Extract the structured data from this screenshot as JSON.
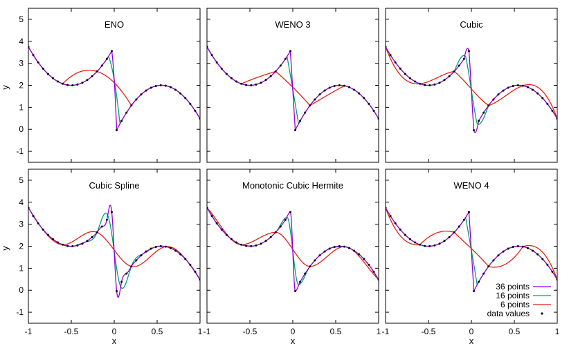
{
  "figure": {
    "axis_xlabel": "x",
    "axis_ylabel": "y",
    "legend_position": "bottom-right of last panel",
    "legend": [
      {
        "label": "36 points",
        "color": "#9400d3"
      },
      {
        "label": "16 points",
        "color": "#009e73"
      },
      {
        "label": "6 points",
        "color": "#e51e10"
      },
      {
        "label": "data values",
        "color": "#000000"
      }
    ]
  },
  "chart_data": [
    {
      "type": "line",
      "title": "ENO",
      "method": "eno",
      "xlim": [
        -1,
        1
      ],
      "ylim": [
        -1.5,
        5.5
      ],
      "xticks": [
        -1,
        -0.5,
        0,
        0.5,
        1
      ],
      "yticks": [
        -1,
        0,
        1,
        2,
        3,
        4,
        5
      ],
      "xticklabels": [],
      "yticklabels": [
        "-1",
        "0",
        "1",
        "2",
        "3",
        "4",
        "5"
      ],
      "xlabel": "",
      "ylabel": "y",
      "series": [
        {
          "name": "36 points",
          "n": 36
        },
        {
          "name": "16 points",
          "n": 16
        },
        {
          "name": "6 points",
          "n": 6
        }
      ],
      "data_values_from": 36
    },
    {
      "type": "line",
      "title": "WENO 3",
      "method": "weno3",
      "xlim": [
        -1,
        1
      ],
      "ylim": [
        -1.5,
        5.5
      ],
      "xticks": [
        -1,
        -0.5,
        0,
        0.5,
        1
      ],
      "yticks": [
        -1,
        0,
        1,
        2,
        3,
        4,
        5
      ],
      "xticklabels": [],
      "yticklabels": [],
      "xlabel": "",
      "ylabel": "",
      "series": [
        {
          "name": "36 points",
          "n": 36
        },
        {
          "name": "16 points",
          "n": 16
        },
        {
          "name": "6 points",
          "n": 6
        }
      ],
      "data_values_from": 36
    },
    {
      "type": "line",
      "title": "Cubic",
      "method": "cubic",
      "xlim": [
        -1,
        1
      ],
      "ylim": [
        -1.5,
        5.5
      ],
      "xticks": [
        -1,
        -0.5,
        0,
        0.5,
        1
      ],
      "yticks": [
        -1,
        0,
        1,
        2,
        3,
        4,
        5
      ],
      "xticklabels": [],
      "yticklabels": [],
      "xlabel": "",
      "ylabel": "",
      "series": [
        {
          "name": "36 points",
          "n": 36
        },
        {
          "name": "16 points",
          "n": 16
        },
        {
          "name": "6 points",
          "n": 6
        }
      ],
      "data_values_from": 36
    },
    {
      "type": "line",
      "title": "Cubic Spline",
      "method": "spline",
      "xlim": [
        -1,
        1
      ],
      "ylim": [
        -1.5,
        5.5
      ],
      "xticks": [
        -1,
        -0.5,
        0,
        0.5,
        1
      ],
      "yticks": [
        -1,
        0,
        1,
        2,
        3,
        4,
        5
      ],
      "xticklabels": [
        "-1",
        "-0.5",
        "0",
        "0.5",
        "1"
      ],
      "yticklabels": [
        "-1",
        "0",
        "1",
        "2",
        "3",
        "4",
        "5"
      ],
      "xlabel": "x",
      "ylabel": "y",
      "series": [
        {
          "name": "36 points",
          "n": 36
        },
        {
          "name": "16 points",
          "n": 16
        },
        {
          "name": "6 points",
          "n": 6
        }
      ],
      "data_values_from": 36
    },
    {
      "type": "line",
      "title": "Monotonic Cubic Hermite",
      "method": "pchip",
      "xlim": [
        -1,
        1
      ],
      "ylim": [
        -1.5,
        5.5
      ],
      "xticks": [
        -1,
        -0.5,
        0,
        0.5,
        1
      ],
      "yticks": [
        -1,
        0,
        1,
        2,
        3,
        4,
        5
      ],
      "xticklabels": [
        "-1",
        "-0.5",
        "0",
        "0.5",
        "1"
      ],
      "yticklabels": [],
      "xlabel": "x",
      "ylabel": "",
      "series": [
        {
          "name": "36 points",
          "n": 36
        },
        {
          "name": "16 points",
          "n": 16
        },
        {
          "name": "6 points",
          "n": 6
        }
      ],
      "data_values_from": 36
    },
    {
      "type": "line",
      "title": "WENO 4",
      "method": "weno4",
      "xlim": [
        -1,
        1
      ],
      "ylim": [
        -1.5,
        5.5
      ],
      "xticks": [
        -1,
        -0.5,
        0,
        0.5,
        1
      ],
      "yticks": [
        -1,
        0,
        1,
        2,
        3,
        4,
        5
      ],
      "xticklabels": [
        "-1",
        "-0.5",
        "0",
        "0.5",
        "1"
      ],
      "yticklabels": [],
      "xlabel": "x",
      "ylabel": "",
      "series": [
        {
          "name": "36 points",
          "n": 36
        },
        {
          "name": "16 points",
          "n": 16
        },
        {
          "name": "6 points",
          "n": 6
        }
      ],
      "data_values_from": 36,
      "show_legend": true
    }
  ]
}
